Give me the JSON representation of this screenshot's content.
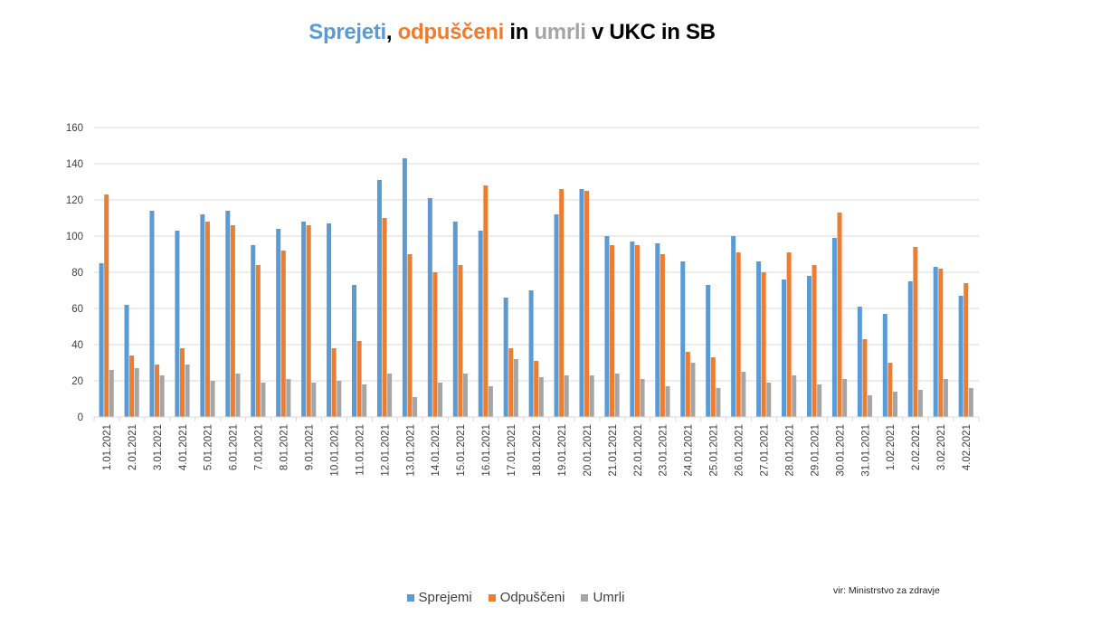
{
  "title": {
    "part1": "Sprejeti",
    "sep1": ", ",
    "part2": "odpuščeni",
    "sep2": " in ",
    "part3": "umrli",
    "rest": " v UKC in SB"
  },
  "source": "vir: Ministrstvo za zdravje",
  "colors": {
    "sprejemi": "#5b9bd5",
    "odpusceni": "#ed7d31",
    "umrli": "#a5a5a5",
    "grid": "#d9d9d9",
    "axis_text": "#404040"
  },
  "chart_data": {
    "type": "bar",
    "title": "Sprejeti, odpuščeni in umrli v UKC in SB",
    "xlabel": "",
    "ylabel": "",
    "ylim": [
      0,
      160
    ],
    "yticks": [
      0,
      20,
      40,
      60,
      80,
      100,
      120,
      140,
      160
    ],
    "grid": true,
    "legend_position": "bottom",
    "categories": [
      "1.01.2021",
      "2.01.2021",
      "3.01.2021",
      "4.01.2021",
      "5.01.2021",
      "6.01.2021",
      "7.01.2021",
      "8.01.2021",
      "9.01.2021",
      "10.01.2021",
      "11.01.2021",
      "12.01.2021",
      "13.01.2021",
      "14.01.2021",
      "15.01.2021",
      "16.01.2021",
      "17.01.2021",
      "18.01.2021",
      "19.01.2021",
      "20.01.2021",
      "21.01.2021",
      "22.01.2021",
      "23.01.2021",
      "24.01.2021",
      "25.01.2021",
      "26.01.2021",
      "27.01.2021",
      "28.01.2021",
      "29.01.2021",
      "30.01.2021",
      "31.01.2021",
      "1.02.2021",
      "2.02.2021",
      "3.02.2021",
      "4.02.2021"
    ],
    "series": [
      {
        "name": "Sprejemi",
        "values": [
          85,
          62,
          114,
          103,
          112,
          114,
          95,
          104,
          108,
          107,
          73,
          131,
          143,
          121,
          108,
          103,
          66,
          70,
          112,
          126,
          100,
          97,
          96,
          86,
          73,
          100,
          86,
          76,
          78,
          99,
          61,
          57,
          75,
          83,
          67
        ]
      },
      {
        "name": "Odpuščeni",
        "values": [
          123,
          34,
          29,
          38,
          108,
          106,
          84,
          92,
          106,
          38,
          42,
          110,
          90,
          80,
          84,
          128,
          38,
          31,
          126,
          125,
          95,
          95,
          90,
          36,
          33,
          91,
          80,
          91,
          84,
          113,
          43,
          30,
          94,
          82,
          74
        ]
      },
      {
        "name": "Umrli",
        "values": [
          26,
          27,
          23,
          29,
          20,
          24,
          19,
          21,
          19,
          20,
          18,
          24,
          11,
          19,
          24,
          17,
          32,
          22,
          23,
          23,
          24,
          21,
          17,
          30,
          16,
          25,
          19,
          23,
          18,
          21,
          12,
          14,
          15,
          21,
          16
        ]
      }
    ]
  }
}
